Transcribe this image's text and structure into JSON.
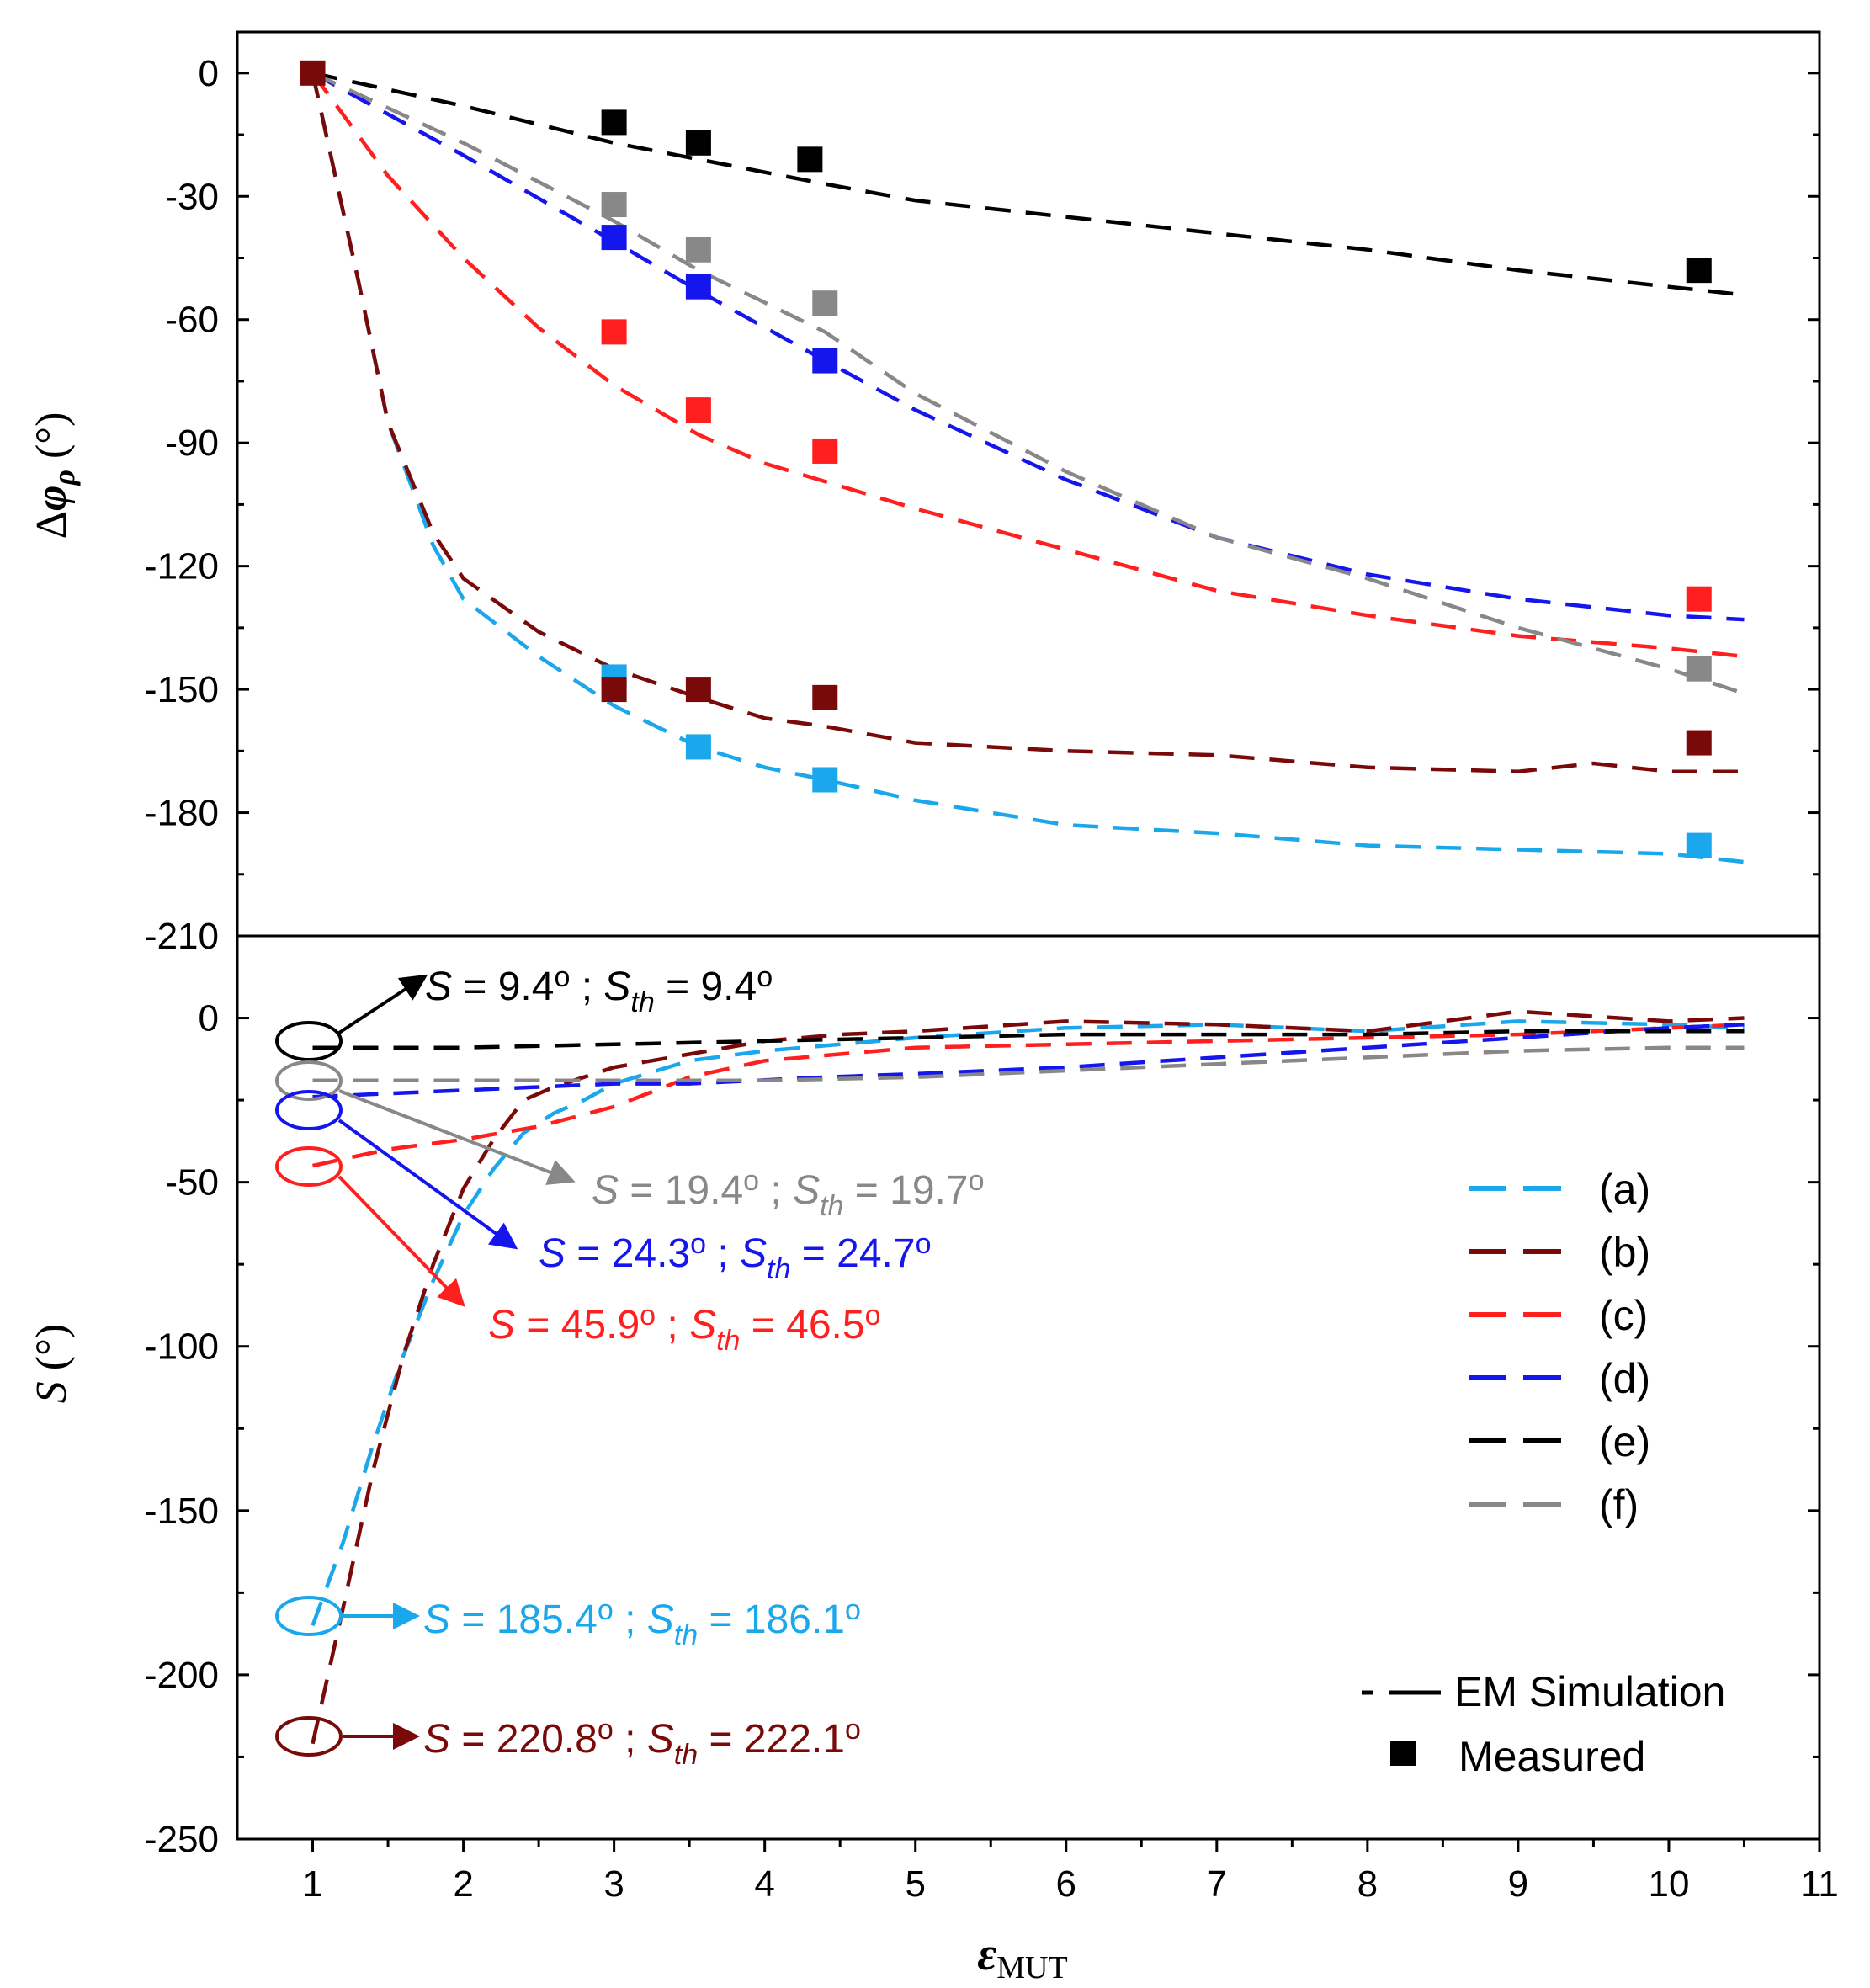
{
  "colors": {
    "a": "#1aa7ec",
    "b": "#7a0a0a",
    "c": "#ff1f1f",
    "d": "#1515ee",
    "e": "#000000",
    "f": "#888888"
  },
  "chart_data": [
    {
      "type": "line",
      "panel": "top",
      "ylabel": "Δφρ (°)",
      "ylabel_delta": "Δ",
      "ylabel_phi": "φ",
      "ylabel_sub": "ρ",
      "ylabel_unit": " (°)",
      "xlim": [
        0.5,
        11
      ],
      "ylim": [
        -210,
        10
      ],
      "yticks": [
        0,
        -30,
        -60,
        -90,
        -120,
        -150,
        -180,
        -210
      ],
      "series": [
        {
          "name": "(a)",
          "color_key": "a",
          "sim_x": [
            1,
            1.3,
            1.5,
            1.8,
            2,
            2.5,
            3,
            3.56,
            4,
            4.4,
            5,
            6,
            7,
            8,
            9,
            10,
            10.5
          ],
          "sim_y": [
            0,
            -50,
            -85,
            -115,
            -128,
            -142,
            -154,
            -164,
            -169,
            -172,
            -177,
            -183,
            -185,
            -188,
            -189,
            -190,
            -192
          ],
          "meas_x": [
            3,
            3.56,
            4.4,
            10.2
          ],
          "meas_y": [
            -147,
            -164,
            -172,
            -188
          ]
        },
        {
          "name": "(b)",
          "color_key": "b",
          "sim_x": [
            1,
            1.3,
            1.5,
            1.8,
            2,
            2.5,
            3,
            3.56,
            4,
            4.4,
            5,
            6,
            7,
            8,
            9,
            9.5,
            10,
            10.5
          ],
          "sim_y": [
            0,
            -50,
            -85,
            -112,
            -123,
            -136,
            -145,
            -152,
            -157,
            -159,
            -163,
            -165,
            -166,
            -169,
            -170,
            -168,
            -170,
            -170
          ],
          "meas_x": [
            3,
            3.56,
            4.4,
            10.2
          ],
          "meas_y": [
            -150,
            -150,
            -152,
            -163
          ]
        },
        {
          "name": "(c)",
          "color_key": "c",
          "sim_x": [
            1,
            1.5,
            2,
            2.5,
            3,
            3.56,
            4,
            5,
            6,
            7,
            8,
            9,
            10,
            10.5
          ],
          "sim_y": [
            0,
            -25,
            -45,
            -62,
            -76,
            -88,
            -95,
            -106,
            -116,
            -126,
            -132,
            -137,
            -140,
            -142
          ],
          "meas_x": [
            3,
            3.56,
            4.4,
            10.2
          ],
          "meas_y": [
            -63,
            -82,
            -92,
            -128
          ]
        },
        {
          "name": "(d)",
          "color_key": "d",
          "sim_x": [
            1,
            2,
            3,
            3.56,
            4.4,
            5,
            6,
            7,
            8,
            9,
            10,
            10.5
          ],
          "sim_y": [
            0,
            -20,
            -41,
            -53,
            -70,
            -82,
            -99,
            -113,
            -122,
            -128,
            -132,
            -133
          ],
          "meas_x": [
            3,
            3.56,
            4.4
          ],
          "meas_y": [
            -40,
            -52,
            -70
          ]
        },
        {
          "name": "(e)",
          "color_key": "e",
          "sim_x": [
            1,
            2,
            3,
            3.56,
            4.4,
            5,
            6,
            7,
            8,
            9,
            10,
            10.5
          ],
          "sim_y": [
            0,
            -8,
            -17,
            -21,
            -27,
            -31,
            -35,
            -39,
            -43,
            -48,
            -52,
            -54
          ],
          "meas_x": [
            3,
            3.56,
            4.3,
            10.2
          ],
          "meas_y": [
            -12,
            -17,
            -21,
            -48
          ]
        },
        {
          "name": "(f)",
          "color_key": "f",
          "sim_x": [
            1,
            2,
            3,
            3.56,
            4.4,
            5,
            6,
            7,
            8,
            9,
            10,
            10.5
          ],
          "sim_y": [
            0,
            -17,
            -36,
            -48,
            -63,
            -78,
            -97,
            -113,
            -123,
            -135,
            -145,
            -151
          ],
          "meas_x": [
            3,
            3.56,
            4.4,
            10.2
          ],
          "meas_y": [
            -32,
            -43,
            -56,
            -145
          ]
        }
      ]
    },
    {
      "type": "line",
      "panel": "bottom",
      "ylabel": "S (°)",
      "ylabel_s": "S",
      "ylabel_unit": " (°)",
      "xlabel": "εMUT",
      "xlabel_eps": "ε",
      "xlabel_sub": "MUT",
      "xlim": [
        0.5,
        11
      ],
      "ylim": [
        -250,
        25
      ],
      "xticks": [
        1,
        2,
        3,
        4,
        5,
        6,
        7,
        8,
        9,
        10,
        11
      ],
      "yticks": [
        0,
        -50,
        -100,
        -150,
        -200,
        -250
      ],
      "series": [
        {
          "name": "(a)",
          "color_key": "a",
          "x": [
            1,
            1.2,
            1.4,
            1.6,
            1.8,
            2,
            2.2,
            2.4,
            2.6,
            2.8,
            3,
            3.5,
            4,
            5,
            6,
            7,
            8,
            9,
            10,
            10.5
          ],
          "y": [
            -185,
            -160,
            -130,
            -103,
            -80,
            -60,
            -46,
            -35,
            -29,
            -25,
            -20,
            -13,
            -10,
            -6,
            -3,
            -2,
            -4,
            -1,
            -2,
            -3
          ]
        },
        {
          "name": "(b)",
          "color_key": "b",
          "x": [
            1,
            1.2,
            1.4,
            1.6,
            1.8,
            2,
            2.2,
            2.4,
            2.6,
            2.8,
            3,
            3.5,
            4,
            4.5,
            5,
            6,
            7,
            8,
            9,
            10,
            10.5
          ],
          "y": [
            -221,
            -180,
            -138,
            -103,
            -75,
            -52,
            -37,
            -25,
            -21,
            -18,
            -15,
            -11,
            -7,
            -5,
            -4,
            -1,
            -2,
            -4,
            2,
            -1,
            0
          ]
        },
        {
          "name": "(c)",
          "color_key": "c",
          "x": [
            1,
            1.5,
            2,
            2.5,
            3,
            3.5,
            4,
            5,
            6,
            7,
            8,
            9,
            10,
            10.5
          ],
          "y": [
            -45,
            -40,
            -37,
            -33,
            -27,
            -18,
            -13,
            -9,
            -8,
            -7,
            -6,
            -5,
            -3,
            -2
          ]
        },
        {
          "name": "(d)",
          "color_key": "d",
          "x": [
            1,
            2,
            3,
            3.5,
            4.4,
            5,
            6,
            7,
            8,
            9,
            10,
            10.5
          ],
          "y": [
            -24,
            -22,
            -20,
            -20,
            -18,
            -17,
            -15,
            -12,
            -9,
            -6,
            -3,
            -2
          ]
        },
        {
          "name": "(e)",
          "color_key": "e",
          "x": [
            1,
            2,
            3,
            4,
            5,
            6,
            7,
            8,
            9,
            10,
            10.5
          ],
          "y": [
            -9,
            -9,
            -8,
            -7,
            -6,
            -5,
            -5,
            -5,
            -4,
            -4,
            -4
          ]
        },
        {
          "name": "(f)",
          "color_key": "f",
          "x": [
            1,
            2,
            3,
            4,
            5,
            6,
            7,
            8,
            9,
            10,
            10.5
          ],
          "y": [
            -19,
            -19,
            -19,
            -19,
            -18,
            -16,
            -14,
            -12,
            -10,
            -9,
            -9
          ]
        }
      ]
    }
  ],
  "annotations": [
    {
      "id": "e",
      "color_key": "e",
      "s_val": "9.4",
      "sth_val": "9.4"
    },
    {
      "id": "f",
      "color_key": "f",
      "s_val": "19.4",
      "sth_val": "19.7"
    },
    {
      "id": "d",
      "color_key": "d",
      "s_val": "24.3",
      "sth_val": "24.7"
    },
    {
      "id": "c",
      "color_key": "c",
      "s_val": "45.9",
      "sth_val": "46.5"
    },
    {
      "id": "a",
      "color_key": "a",
      "s_val": "185.4",
      "sth_val": "186.1"
    },
    {
      "id": "b",
      "color_key": "b",
      "s_val": "220.8",
      "sth_val": "222.1"
    }
  ],
  "ann_text": {
    "s": "S",
    "eq": " = ",
    "deg": "o",
    "sep": " ; ",
    "sth_base": "S",
    "sth_sub": "th"
  },
  "legend": {
    "items": [
      "(a)",
      "(b)",
      "(c)",
      "(d)",
      "(e)",
      "(f)"
    ],
    "sim_label": "EM Simulation",
    "meas_label": "Measured"
  }
}
